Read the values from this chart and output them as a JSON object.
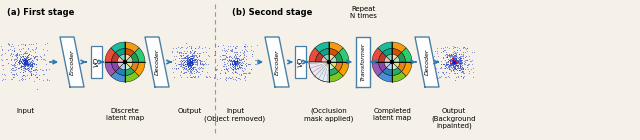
{
  "bg_color": "#f5f0e8",
  "arrow_color": "#2878b5",
  "box_border_color": "#3a3a3a",
  "dashed_line_color": "#999999",
  "title_a": "(a) First stage",
  "title_b": "(b) Second stage",
  "repeat_text": "Repeat\nN times",
  "label_a_input": "Input",
  "label_a_discrete": "Discrete\nlatent map",
  "label_a_output": "Output",
  "label_b_input": "Input\n(Object removed)",
  "label_b_occlusion": "(Occlusion\nmask applied)",
  "label_b_completed": "Completed\nlatent map",
  "label_b_output": "Output\n(Background\ninpainted)",
  "colors_outer": [
    "#f5a000",
    "#7ec820",
    "#4a90d9",
    "#9b59b6",
    "#e74c3c",
    "#1abc9c",
    "#f39c12",
    "#2ecc71"
  ],
  "colors_mid": [
    "#e67e22",
    "#27ae60",
    "#2980b9",
    "#8e44ad",
    "#c0392b",
    "#16a085",
    "#d35400",
    "#229954"
  ],
  "colors_inner": [
    "#f7dc6f",
    "#c8f0d0",
    "#aed6f1",
    "#d7bde2",
    "#f5b7b1",
    "#76d7c4",
    "#fad7a0",
    "#a9dfbf"
  ],
  "encoder_border": "#4a7fa5",
  "vq_border": "#4a7fa5"
}
